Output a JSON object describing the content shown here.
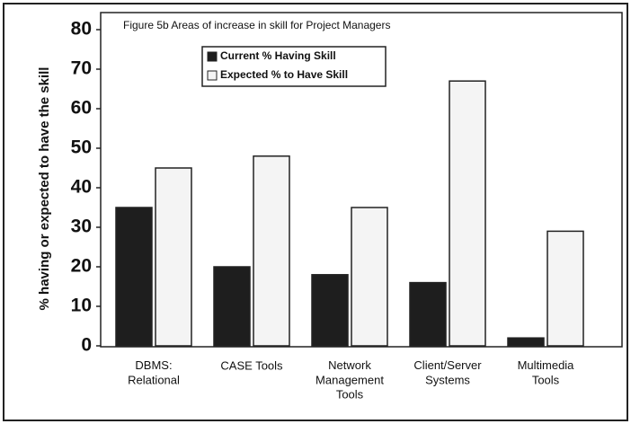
{
  "chart_data": {
    "type": "bar",
    "title": "Figure 5b Areas of increase in skill for Project Managers",
    "ylabel": "% having or expected to have the skill",
    "categories": [
      "DBMS:\nRelational",
      "CASE Tools",
      "Network\nManagement\nTools",
      "Client/Server\nSystems",
      "Multimedia\nTools"
    ],
    "series": [
      {
        "name": "Current % Having Skill",
        "color": "#1e1e1e",
        "values": [
          35,
          20,
          18,
          16,
          2
        ]
      },
      {
        "name": "Expected % to Have Skill",
        "color": "#f4f4f4",
        "values": [
          45,
          48,
          35,
          67,
          29
        ]
      }
    ],
    "ylim": [
      0,
      80
    ],
    "yticks": [
      0,
      10,
      20,
      30,
      40,
      50,
      60,
      70,
      80
    ]
  }
}
